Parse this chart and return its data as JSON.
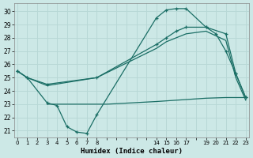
{
  "background_color": "#cce8e6",
  "grid_color": "#b8d8d6",
  "line_color": "#1a6e65",
  "xlabel": "Humidex (Indice chaleur)",
  "ylim": [
    20.5,
    30.6
  ],
  "yticks": [
    21,
    22,
    23,
    24,
    25,
    26,
    27,
    28,
    29,
    30
  ],
  "xlim": [
    -0.3,
    23.3
  ],
  "x_ticks": [
    0,
    1,
    2,
    3,
    4,
    5,
    6,
    7,
    8,
    14,
    15,
    16,
    17,
    19,
    20,
    21,
    22,
    23
  ],
  "s1_x": [
    0,
    1,
    3,
    4,
    5,
    6,
    7,
    8,
    14,
    15,
    16,
    17,
    19,
    20,
    21,
    22,
    23
  ],
  "s1_y": [
    25.5,
    25.0,
    23.1,
    22.9,
    21.3,
    20.9,
    20.8,
    22.2,
    29.5,
    30.1,
    30.2,
    30.2,
    28.8,
    28.3,
    27.0,
    25.3,
    23.5
  ],
  "s2_x": [
    0,
    1,
    3,
    8,
    14,
    15,
    16,
    17,
    19,
    21,
    22,
    23
  ],
  "s2_y": [
    25.5,
    25.0,
    24.5,
    25.0,
    27.5,
    28.0,
    28.5,
    28.8,
    28.8,
    28.3,
    25.3,
    23.5
  ],
  "s3_x": [
    0,
    1,
    3,
    8,
    14,
    15,
    16,
    17,
    19,
    21,
    22,
    23
  ],
  "s3_y": [
    25.5,
    25.0,
    24.4,
    25.0,
    27.2,
    27.7,
    28.0,
    28.3,
    28.5,
    27.8,
    25.0,
    23.3
  ],
  "s4_x": [
    3,
    4,
    8,
    9,
    14,
    17,
    19,
    21,
    22,
    23
  ],
  "s4_y": [
    23.0,
    23.0,
    23.0,
    23.0,
    23.2,
    23.35,
    23.45,
    23.5,
    23.5,
    23.5
  ]
}
